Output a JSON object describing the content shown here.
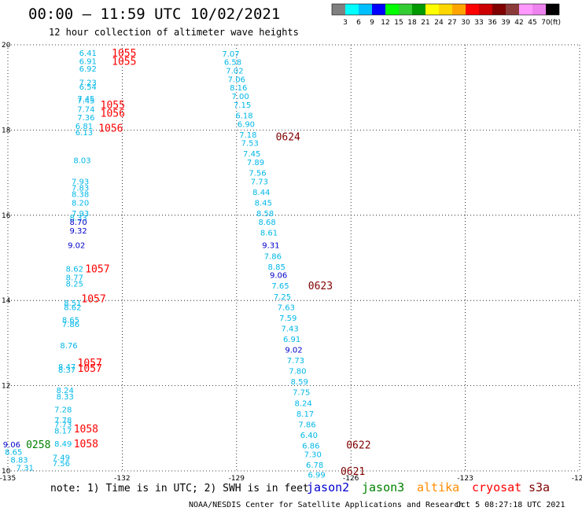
{
  "title": "00:00 – 11:59 UTC 10/02/2021",
  "subtitle": "12 hour collection of altimeter wave heights",
  "colorbar": {
    "colors": [
      "#808080",
      "#00ffff",
      "#00bfff",
      "#0000ff",
      "#00ff00",
      "#33cc33",
      "#009900",
      "#ffff00",
      "#ffd700",
      "#ffa500",
      "#ff0000",
      "#cc0000",
      "#800000",
      "#8b3a3a",
      "#ff99ff",
      "#ee82ee",
      "#000000"
    ],
    "labels": [
      "3",
      "6",
      "9",
      "12",
      "15",
      "18",
      "21",
      "24",
      "27",
      "30",
      "33",
      "36",
      "39",
      "42",
      "45",
      "70"
    ],
    "unit": "(ft)"
  },
  "note": "note: 1) Time is in UTC; 2) SWH is in feet",
  "satellites": [
    {
      "name": "jason2",
      "color": "#0000cc"
    },
    {
      "name": "jason3",
      "color": "#008000"
    },
    {
      "name": "altika",
      "color": "#ff8c00"
    },
    {
      "name": "cryosat",
      "color": "#ff0000"
    },
    {
      "name": "s3a",
      "color": "#800000"
    }
  ],
  "credit": "NOAA/NESDIS Center for Satellite Applications and Research",
  "timestamp": "Oct  5 08:27:18 UTC 2021",
  "chart_data": {
    "type": "scatter",
    "xlim": [
      -135,
      -120
    ],
    "ylim": [
      10,
      20
    ],
    "x_ticks": [
      "-135",
      "-132",
      "-129",
      "-126",
      "-123",
      "-120"
    ],
    "y_ticks": [
      "20",
      "18",
      "16",
      "14",
      "12",
      "10"
    ],
    "grid": true,
    "value_colors": {
      "cyan": "#00b7e8",
      "blue": "#0000cc",
      "green": "#008000",
      "red": "#ff0000",
      "maroon": "#800000"
    },
    "points": [
      {
        "lon": -132.9,
        "lat": 19.82,
        "label": "6.41",
        "c": "cyan"
      },
      {
        "lon": -132.9,
        "lat": 19.62,
        "label": "6.91",
        "c": "cyan"
      },
      {
        "lon": -132.9,
        "lat": 19.45,
        "label": "6.92",
        "c": "cyan"
      },
      {
        "lon": -132.9,
        "lat": 19.12,
        "label": "7.23",
        "c": "cyan"
      },
      {
        "lon": -132.9,
        "lat": 19.02,
        "label": "6.54",
        "c": "cyan"
      },
      {
        "lon": -132.95,
        "lat": 18.75,
        "label": "7.45",
        "c": "cyan"
      },
      {
        "lon": -132.95,
        "lat": 18.7,
        "label": "7.45",
        "c": "cyan"
      },
      {
        "lon": -132.95,
        "lat": 18.5,
        "label": "7.74",
        "c": "cyan"
      },
      {
        "lon": -132.95,
        "lat": 18.3,
        "label": "7.36",
        "c": "cyan"
      },
      {
        "lon": -133.0,
        "lat": 18.1,
        "label": "6.81",
        "c": "cyan"
      },
      {
        "lon": -133.0,
        "lat": 17.95,
        "label": "6.13",
        "c": "cyan"
      },
      {
        "lon": -133.05,
        "lat": 17.3,
        "label": "8.03",
        "c": "cyan"
      },
      {
        "lon": -133.1,
        "lat": 16.8,
        "label": "7.93",
        "c": "cyan"
      },
      {
        "lon": -133.1,
        "lat": 16.65,
        "label": "7.83",
        "c": "cyan"
      },
      {
        "lon": -133.1,
        "lat": 16.5,
        "label": "8.38",
        "c": "cyan"
      },
      {
        "lon": -133.1,
        "lat": 16.3,
        "label": "8.20",
        "c": "cyan"
      },
      {
        "lon": -133.1,
        "lat": 16.05,
        "label": "7.93",
        "c": "cyan"
      },
      {
        "lon": -133.15,
        "lat": 15.95,
        "label": "8.33",
        "c": "cyan"
      },
      {
        "lon": -133.15,
        "lat": 15.85,
        "label": "8.70",
        "c": "blue"
      },
      {
        "lon": -133.15,
        "lat": 15.65,
        "label": "9.32",
        "c": "blue"
      },
      {
        "lon": -133.2,
        "lat": 15.3,
        "label": "9.02",
        "c": "blue"
      },
      {
        "lon": -133.25,
        "lat": 14.75,
        "label": "8.62",
        "c": "cyan"
      },
      {
        "lon": -133.25,
        "lat": 14.55,
        "label": "8.77",
        "c": "cyan"
      },
      {
        "lon": -133.25,
        "lat": 14.4,
        "label": "8.25",
        "c": "cyan"
      },
      {
        "lon": -133.3,
        "lat": 13.95,
        "label": "8.51",
        "c": "cyan"
      },
      {
        "lon": -133.3,
        "lat": 13.85,
        "label": "8.62",
        "c": "cyan"
      },
      {
        "lon": -133.35,
        "lat": 13.55,
        "label": "8.65",
        "c": "cyan"
      },
      {
        "lon": -133.35,
        "lat": 13.45,
        "label": "7.86",
        "c": "cyan"
      },
      {
        "lon": -133.4,
        "lat": 12.95,
        "label": "8.76",
        "c": "cyan"
      },
      {
        "lon": -133.45,
        "lat": 12.45,
        "label": "8.47",
        "c": "cyan"
      },
      {
        "lon": -133.45,
        "lat": 12.38,
        "label": "8.37",
        "c": "cyan"
      },
      {
        "lon": -133.5,
        "lat": 11.9,
        "label": "8.24",
        "c": "cyan"
      },
      {
        "lon": -133.5,
        "lat": 11.75,
        "label": "8.33",
        "c": "cyan"
      },
      {
        "lon": -133.55,
        "lat": 11.45,
        "label": "7.28",
        "c": "cyan"
      },
      {
        "lon": -133.55,
        "lat": 11.2,
        "label": "7.78",
        "c": "cyan"
      },
      {
        "lon": -133.55,
        "lat": 11.1,
        "label": "7.73",
        "c": "cyan"
      },
      {
        "lon": -133.55,
        "lat": 10.95,
        "label": "8.17",
        "c": "cyan"
      },
      {
        "lon": -133.55,
        "lat": 10.65,
        "label": "8.49",
        "c": "cyan"
      },
      {
        "lon": -134.9,
        "lat": 10.63,
        "label": "9.06",
        "c": "blue"
      },
      {
        "lon": -134.85,
        "lat": 10.45,
        "label": "8.65",
        "c": "cyan"
      },
      {
        "lon": -134.7,
        "lat": 10.27,
        "label": "8.83",
        "c": "cyan"
      },
      {
        "lon": -134.55,
        "lat": 10.08,
        "label": "7.31",
        "c": "cyan"
      },
      {
        "lon": -133.6,
        "lat": 10.32,
        "label": "7.49",
        "c": "cyan"
      },
      {
        "lon": -133.6,
        "lat": 10.18,
        "label": "7.56",
        "c": "cyan"
      },
      {
        "lon": -129.15,
        "lat": 19.8,
        "label": "7.07",
        "c": "cyan"
      },
      {
        "lon": -129.1,
        "lat": 19.6,
        "label": "6.58",
        "c": "cyan"
      },
      {
        "lon": -129.05,
        "lat": 19.4,
        "label": "7.02",
        "c": "cyan"
      },
      {
        "lon": -129.0,
        "lat": 19.2,
        "label": "7.06",
        "c": "cyan"
      },
      {
        "lon": -128.95,
        "lat": 19.0,
        "label": "8.16",
        "c": "cyan"
      },
      {
        "lon": -128.9,
        "lat": 18.8,
        "label": "7.00",
        "c": "cyan"
      },
      {
        "lon": -128.85,
        "lat": 18.6,
        "label": "7.15",
        "c": "cyan"
      },
      {
        "lon": -128.8,
        "lat": 18.35,
        "label": "6.18",
        "c": "cyan"
      },
      {
        "lon": -128.75,
        "lat": 18.15,
        "label": "6.90",
        "c": "cyan"
      },
      {
        "lon": -128.7,
        "lat": 17.9,
        "label": "7.18",
        "c": "cyan"
      },
      {
        "lon": -128.65,
        "lat": 17.7,
        "label": "7.53",
        "c": "cyan"
      },
      {
        "lon": -128.6,
        "lat": 17.45,
        "label": "7.45",
        "c": "cyan"
      },
      {
        "lon": -128.5,
        "lat": 17.25,
        "label": "7.89",
        "c": "cyan"
      },
      {
        "lon": -128.45,
        "lat": 17.0,
        "label": "7.56",
        "c": "cyan"
      },
      {
        "lon": -128.4,
        "lat": 16.8,
        "label": "7.73",
        "c": "cyan"
      },
      {
        "lon": -128.35,
        "lat": 16.55,
        "label": "8.44",
        "c": "cyan"
      },
      {
        "lon": -128.3,
        "lat": 16.3,
        "label": "8.45",
        "c": "cyan"
      },
      {
        "lon": -128.25,
        "lat": 16.05,
        "label": "8.58",
        "c": "cyan"
      },
      {
        "lon": -128.2,
        "lat": 15.85,
        "label": "8.68",
        "c": "cyan"
      },
      {
        "lon": -128.15,
        "lat": 15.6,
        "label": "8.61",
        "c": "cyan"
      },
      {
        "lon": -128.1,
        "lat": 15.3,
        "label": "9.31",
        "c": "blue"
      },
      {
        "lon": -128.05,
        "lat": 15.05,
        "label": "7.86",
        "c": "cyan"
      },
      {
        "lon": -127.95,
        "lat": 14.8,
        "label": "8.85",
        "c": "cyan"
      },
      {
        "lon": -127.9,
        "lat": 14.6,
        "label": "9.06",
        "c": "blue"
      },
      {
        "lon": -127.85,
        "lat": 14.35,
        "label": "7.65",
        "c": "cyan"
      },
      {
        "lon": -127.8,
        "lat": 14.1,
        "label": "7.25",
        "c": "cyan"
      },
      {
        "lon": -127.7,
        "lat": 13.85,
        "label": "7.63",
        "c": "cyan"
      },
      {
        "lon": -127.65,
        "lat": 13.6,
        "label": "7.59",
        "c": "cyan"
      },
      {
        "lon": -127.6,
        "lat": 13.35,
        "label": "7.43",
        "c": "cyan"
      },
      {
        "lon": -127.55,
        "lat": 13.1,
        "label": "6.91",
        "c": "cyan"
      },
      {
        "lon": -127.5,
        "lat": 12.85,
        "label": "9.02",
        "c": "blue"
      },
      {
        "lon": -127.45,
        "lat": 12.6,
        "label": "7.73",
        "c": "cyan"
      },
      {
        "lon": -127.4,
        "lat": 12.35,
        "label": "7.80",
        "c": "cyan"
      },
      {
        "lon": -127.35,
        "lat": 12.1,
        "label": "8.59",
        "c": "cyan"
      },
      {
        "lon": -127.3,
        "lat": 11.85,
        "label": "7.75",
        "c": "cyan"
      },
      {
        "lon": -127.25,
        "lat": 11.6,
        "label": "8.24",
        "c": "cyan"
      },
      {
        "lon": -127.2,
        "lat": 11.35,
        "label": "8.17",
        "c": "cyan"
      },
      {
        "lon": -127.15,
        "lat": 11.1,
        "label": "7.86",
        "c": "cyan"
      },
      {
        "lon": -127.1,
        "lat": 10.85,
        "label": "6.40",
        "c": "cyan"
      },
      {
        "lon": -127.05,
        "lat": 10.6,
        "label": "6.86",
        "c": "cyan"
      },
      {
        "lon": -127.0,
        "lat": 10.4,
        "label": "7.30",
        "c": "cyan"
      },
      {
        "lon": -126.95,
        "lat": 10.15,
        "label": "6.78",
        "c": "cyan"
      },
      {
        "lon": -126.9,
        "lat": 9.92,
        "label": "6.99",
        "c": "cyan"
      }
    ],
    "pass_labels": [
      {
        "lon": -131.95,
        "lat": 19.82,
        "label": "1055",
        "c": "red"
      },
      {
        "lon": -131.95,
        "lat": 19.62,
        "label": "1055",
        "c": "red"
      },
      {
        "lon": -132.25,
        "lat": 18.6,
        "label": "1055",
        "c": "red"
      },
      {
        "lon": -132.25,
        "lat": 18.4,
        "label": "1056",
        "c": "red"
      },
      {
        "lon": -132.3,
        "lat": 18.05,
        "label": "1056",
        "c": "red"
      },
      {
        "lon": -127.65,
        "lat": 17.85,
        "label": "0624",
        "c": "maroon"
      },
      {
        "lon": -132.65,
        "lat": 14.75,
        "label": "1057",
        "c": "red"
      },
      {
        "lon": -132.75,
        "lat": 14.05,
        "label": "1057",
        "c": "red"
      },
      {
        "lon": -132.85,
        "lat": 12.55,
        "label": "1057",
        "c": "red"
      },
      {
        "lon": -132.85,
        "lat": 12.42,
        "label": "1057",
        "c": "red"
      },
      {
        "lon": -126.8,
        "lat": 14.35,
        "label": "0623",
        "c": "maroon"
      },
      {
        "lon": -132.95,
        "lat": 11.0,
        "label": "1058",
        "c": "red"
      },
      {
        "lon": -132.95,
        "lat": 10.65,
        "label": "1058",
        "c": "red"
      },
      {
        "lon": -134.2,
        "lat": 10.63,
        "label": "0258",
        "c": "green"
      },
      {
        "lon": -125.8,
        "lat": 10.62,
        "label": "0622",
        "c": "maroon"
      },
      {
        "lon": -125.95,
        "lat": 10.0,
        "label": "0621",
        "c": "maroon"
      }
    ]
  }
}
